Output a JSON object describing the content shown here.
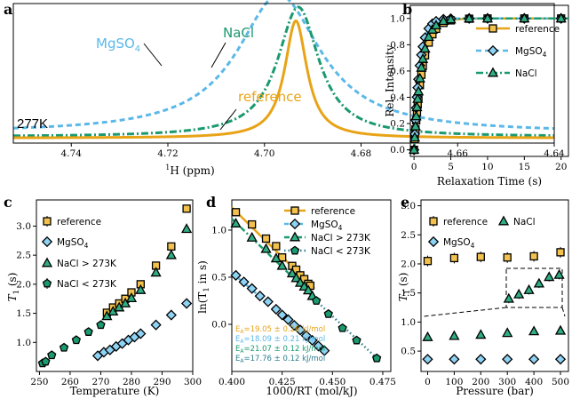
{
  "colors": {
    "reference": "#E8A317",
    "mgso4": "#5BB8E8",
    "nacl": "#1A9A6E",
    "reference_marker": "#F2C14E",
    "mgso4_marker": "#8FD3F4",
    "nacl_marker": "#2FAE83",
    "arrhenius_dark": "#2E7F8E"
  },
  "panels": {
    "a": {
      "letter": "a",
      "label_mgso4": "MgSO",
      "label_mgso4_sub": "4",
      "label_nacl": "NaCl",
      "label_reference": "reference",
      "temperature": "277K",
      "xlabel_sup": "1",
      "xlabel": "H (ppm)"
    },
    "b": {
      "letter": "b",
      "legend": [
        "reference",
        "MgSO",
        "NaCl"
      ],
      "legend_sub": "4",
      "xlabel": "Relaxation Time (s)",
      "ylabel": "Rel. Intensity"
    },
    "c": {
      "letter": "c",
      "legend": [
        "reference",
        "MgSO",
        "NaCl > 273K",
        "NaCl < 273K"
      ],
      "legend_sub": "4",
      "xlabel": "Temperature (K)",
      "ylabel": "T",
      "ylabel_sub": "1",
      "ylabel_unit": " (s)"
    },
    "d": {
      "letter": "d",
      "legend": [
        "reference",
        "MgSO",
        "NaCl > 273K",
        "NaCl < 273K"
      ],
      "legend_sub": "4",
      "xlabel": "1000/RT (mol/kJ)",
      "ylabel": "ln(T",
      "ylabel_sub": "1",
      "ylabel_end": " in s)",
      "ea": [
        {
          "pre": "E",
          "sub": "A",
          "text": "=19.05 ± 0.26 kJ/mol"
        },
        {
          "pre": "E",
          "sub": "A",
          "text": "=18.09 ± 0.21 kJ/mol"
        },
        {
          "pre": "E",
          "sub": "A",
          "text": "=21.07 ± 0.12 kJ/mol"
        },
        {
          "pre": "E",
          "sub": "A",
          "text": "=17.76 ± 0.12 kJ/mol"
        }
      ]
    },
    "e": {
      "letter": "e",
      "legend": [
        "reference",
        "NaCl",
        "MgSO"
      ],
      "legend_sub": "4",
      "xlabel": "Pressure (bar)",
      "ylabel": "T",
      "ylabel_sub": "1",
      "ylabel_unit": " (s)"
    }
  },
  "chart_data": [
    {
      "id": "a",
      "type": "line",
      "title": "",
      "xlabel": "1H (ppm)",
      "ylabel": "",
      "xlim": [
        4.64,
        4.752
      ],
      "ylim": [
        0,
        1
      ],
      "xticks": [
        "4.74",
        "4.72",
        "4.70",
        "4.68",
        "4.66",
        "4.64"
      ],
      "xtick_values": [
        4.74,
        4.72,
        4.7,
        4.68,
        4.66,
        4.64
      ],
      "series": [
        {
          "name": "MgSO4",
          "peak_ppm": 4.697,
          "width": 0.0105,
          "height": 0.99,
          "baseline": 0.072,
          "dash": "dashed"
        },
        {
          "name": "NaCl",
          "peak_ppm": 4.693,
          "width": 0.0052,
          "height": 0.93,
          "baseline": 0.045,
          "dash": "dashdot"
        },
        {
          "name": "reference",
          "peak_ppm": 4.6935,
          "width": 0.0028,
          "height": 0.84,
          "baseline": 0.036,
          "dash": "solid"
        }
      ]
    },
    {
      "id": "b",
      "type": "line",
      "xlabel": "Relaxation Time (s)",
      "ylabel": "Rel. Intensity",
      "xlim": [
        -0.5,
        21
      ],
      "ylim": [
        -0.05,
        1.1
      ],
      "xticks": [
        "0",
        "5",
        "10",
        "15",
        "20"
      ],
      "xtick_values": [
        0,
        5,
        10,
        15,
        20
      ],
      "yticks": [
        "0.0",
        "0.2",
        "0.4",
        "0.6",
        "0.8",
        "1.0"
      ],
      "ytick_values": [
        0,
        0.2,
        0.4,
        0.6,
        0.8,
        1.0
      ],
      "x": [
        0,
        0.1,
        0.2,
        0.3,
        0.4,
        0.5,
        0.6,
        0.8,
        1,
        1.2,
        1.5,
        2,
        2.5,
        3,
        4,
        5,
        7.5,
        10,
        15,
        20
      ],
      "series": [
        {
          "name": "reference",
          "t1": 1.18,
          "dash": "solid"
        },
        {
          "name": "MgSO4",
          "t1": 0.78,
          "dash": "dashed"
        },
        {
          "name": "NaCl",
          "t1": 1.02,
          "dash": "dashdot"
        }
      ]
    },
    {
      "id": "c",
      "type": "scatter",
      "xlabel": "Temperature (K)",
      "ylabel": "T1 (s)",
      "xlim": [
        249,
        300
      ],
      "ylim": [
        0.5,
        3.45
      ],
      "xticks": [
        "250",
        "260",
        "270",
        "280",
        "290",
        "300"
      ],
      "xtick_values": [
        250,
        260,
        270,
        280,
        290,
        300
      ],
      "yticks": [
        "1.0",
        "1.5",
        "2.0",
        "2.5",
        "3.0"
      ],
      "ytick_values": [
        1.0,
        1.5,
        2.0,
        2.5,
        3.0
      ],
      "series": [
        {
          "name": "reference",
          "x": [
            272,
            274,
            276,
            278,
            280,
            283,
            288,
            293,
            298
          ],
          "y": [
            1.51,
            1.6,
            1.67,
            1.75,
            1.86,
            2.0,
            2.32,
            2.65,
            3.3
          ]
        },
        {
          "name": "MgSO4",
          "x": [
            269,
            271,
            273,
            275,
            277,
            279,
            281,
            283,
            288,
            293,
            298
          ],
          "y": [
            0.77,
            0.83,
            0.87,
            0.93,
            0.98,
            1.04,
            1.09,
            1.15,
            1.3,
            1.47,
            1.67
          ]
        },
        {
          "name": "NaCl > 273K",
          "x": [
            272,
            274,
            276,
            278,
            280,
            283,
            288,
            293,
            298
          ],
          "y": [
            1.45,
            1.53,
            1.6,
            1.67,
            1.76,
            1.9,
            2.2,
            2.5,
            2.95
          ]
        },
        {
          "name": "NaCl < 273K",
          "x": [
            251,
            252,
            254,
            258,
            262,
            266,
            270
          ],
          "y": [
            0.64,
            0.67,
            0.78,
            0.91,
            1.04,
            1.18,
            1.3
          ]
        }
      ]
    },
    {
      "id": "d",
      "type": "scatter",
      "xlabel": "1000/RT (mol/kJ)",
      "ylabel": "ln(T1 in s)",
      "xlim": [
        0.4,
        0.479
      ],
      "ylim": [
        -0.5,
        1.32
      ],
      "xticks": [
        "0.400",
        "0.425",
        "0.450",
        "0.475"
      ],
      "xtick_values": [
        0.4,
        0.425,
        0.45,
        0.475
      ],
      "yticks": [
        "0.0",
        "0.5",
        "1.0"
      ],
      "ytick_values": [
        0,
        0.5,
        1.0
      ],
      "series": [
        {
          "name": "reference",
          "x": [
            0.402,
            0.41,
            0.417,
            0.422,
            0.425,
            0.43,
            0.432,
            0.434,
            0.436,
            0.438,
            0.439
          ],
          "y": [
            1.19,
            1.06,
            0.91,
            0.83,
            0.71,
            0.62,
            0.58,
            0.52,
            0.48,
            0.43,
            0.41
          ]
        },
        {
          "name": "MgSO4",
          "x": [
            0.402,
            0.406,
            0.41,
            0.414,
            0.418,
            0.422,
            0.425,
            0.428,
            0.431,
            0.434,
            0.437,
            0.44,
            0.443,
            0.446
          ],
          "y": [
            0.52,
            0.45,
            0.38,
            0.3,
            0.24,
            0.16,
            0.1,
            0.05,
            -0.01,
            -0.06,
            -0.12,
            -0.17,
            -0.23,
            -0.28
          ]
        },
        {
          "name": "NaCl > 273K",
          "x": [
            0.402,
            0.41,
            0.417,
            0.422,
            0.425,
            0.43,
            0.432,
            0.434,
            0.436,
            0.438,
            0.44
          ],
          "y": [
            1.07,
            0.92,
            0.8,
            0.7,
            0.62,
            0.54,
            0.49,
            0.44,
            0.4,
            0.36,
            0.3
          ]
        },
        {
          "name": "NaCl < 273K",
          "x": [
            0.442,
            0.448,
            0.455,
            0.462,
            0.472
          ],
          "y": [
            0.25,
            0.11,
            -0.04,
            -0.17,
            -0.36
          ]
        }
      ],
      "fit_lines": [
        {
          "series": "reference",
          "x": [
            0.4,
            0.441
          ],
          "y": [
            1.24,
            0.38
          ]
        },
        {
          "series": "MgSO4",
          "x": [
            0.4,
            0.447
          ],
          "y": [
            0.55,
            -0.31
          ]
        },
        {
          "series": "NaCl > 273K",
          "x": [
            0.4,
            0.441
          ],
          "y": [
            1.12,
            0.28
          ]
        },
        {
          "series": "NaCl < 273K",
          "x": [
            0.44,
            0.474
          ],
          "y": [
            0.29,
            -0.4
          ]
        }
      ]
    },
    {
      "id": "e",
      "type": "scatter",
      "xlabel": "Pressure (bar)",
      "ylabel": "T1 (s)",
      "xlim": [
        -25,
        530
      ],
      "ylim": [
        0.15,
        3.1
      ],
      "xticks": [
        "0",
        "100",
        "200",
        "300",
        "400",
        "500"
      ],
      "xtick_values": [
        0,
        100,
        200,
        300,
        400,
        500
      ],
      "yticks": [
        "0.5",
        "1.0",
        "1.5",
        "2.0",
        "2.5",
        "3.0"
      ],
      "ytick_values": [
        0.5,
        1.0,
        1.5,
        2.0,
        2.5,
        3.0
      ],
      "series": [
        {
          "name": "reference",
          "x": [
            0,
            100,
            200,
            300,
            400,
            500
          ],
          "y": [
            2.05,
            2.1,
            2.12,
            2.11,
            2.13,
            2.2
          ]
        },
        {
          "name": "MgSO4",
          "x": [
            0,
            100,
            200,
            300,
            400,
            500
          ],
          "y": [
            0.36,
            0.36,
            0.36,
            0.36,
            0.36,
            0.36
          ]
        },
        {
          "name": "NaCl",
          "x": [
            0,
            100,
            200,
            300,
            400,
            500
          ],
          "y": [
            0.74,
            0.76,
            0.78,
            0.81,
            0.84,
            0.85
          ]
        }
      ],
      "inset": {
        "xlim": [
          -25,
          530
        ],
        "ylim": [
          0.7,
          0.88
        ],
        "x": [
          0,
          100,
          200,
          300,
          400,
          500
        ],
        "y": [
          0.74,
          0.76,
          0.78,
          0.81,
          0.84,
          0.85
        ]
      }
    }
  ]
}
